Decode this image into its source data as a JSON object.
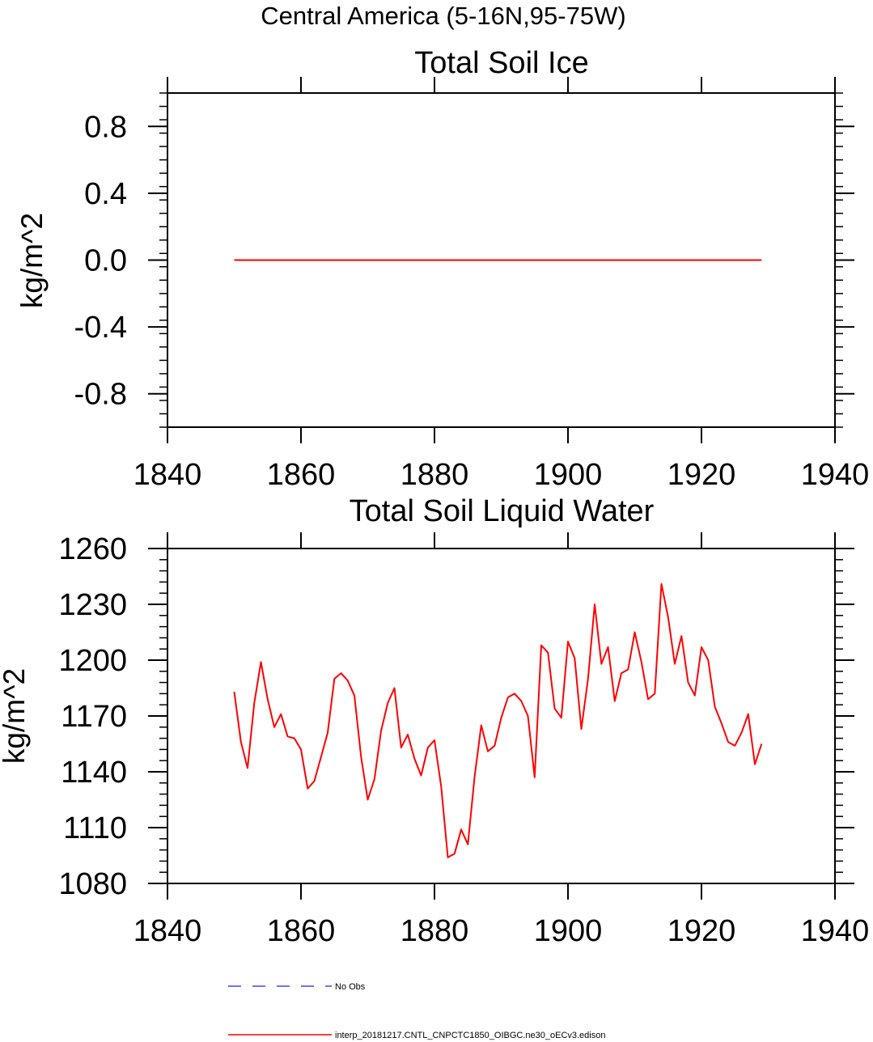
{
  "figure": {
    "suptitle": "Central America (5-16N,95-75W)",
    "legend": {
      "entries": [
        {
          "label": "No Obs",
          "color": "#4444ff",
          "style": "dashed"
        },
        {
          "label": "interp_20181217.CNTL_CNPCTC1850_OIBGC.ne30_oECv3.edison",
          "color": "#ff0000",
          "style": "solid"
        }
      ]
    }
  },
  "chart_data": [
    {
      "type": "line",
      "title": "Total Soil Ice",
      "xlabel": "",
      "ylabel": "kg/m^2",
      "xlim": [
        1840,
        1940
      ],
      "ylim": [
        -1.0,
        1.0
      ],
      "xticks": [
        1840,
        1860,
        1880,
        1900,
        1920,
        1940
      ],
      "xtick_labels": [
        "1840",
        "1860",
        "1880",
        "1900",
        "1920",
        "1940"
      ],
      "yticks": [
        -0.8,
        -0.4,
        0.0,
        0.4,
        0.8
      ],
      "ytick_labels": [
        "-0.8",
        "-0.4",
        "0.0",
        "0.4",
        "0.8"
      ],
      "series": [
        {
          "name": "interp_20181217.CNTL_CNPCTC1850_OIBGC.ne30_oECv3.edison",
          "color": "#ff0000",
          "x": [
            1850,
            1929
          ],
          "y": [
            0.0,
            0.0
          ]
        }
      ]
    },
    {
      "type": "line",
      "title": "Total Soil Liquid Water",
      "xlabel": "",
      "ylabel": "kg/m^2",
      "xlim": [
        1840,
        1940
      ],
      "ylim": [
        1080,
        1260
      ],
      "xticks": [
        1840,
        1860,
        1880,
        1900,
        1920,
        1940
      ],
      "xtick_labels": [
        "1840",
        "1860",
        "1880",
        "1900",
        "1920",
        "1940"
      ],
      "yticks": [
        1080,
        1110,
        1140,
        1170,
        1200,
        1230,
        1260
      ],
      "ytick_labels": [
        "1080",
        "1110",
        "1140",
        "1170",
        "1200",
        "1230",
        "1260"
      ],
      "series": [
        {
          "name": "interp_20181217.CNTL_CNPCTC1850_OIBGC.ne30_oECv3.edison",
          "color": "#ff0000",
          "x": [
            1850,
            1851,
            1852,
            1853,
            1854,
            1855,
            1856,
            1857,
            1858,
            1859,
            1860,
            1861,
            1862,
            1863,
            1864,
            1865,
            1866,
            1867,
            1868,
            1869,
            1870,
            1871,
            1872,
            1873,
            1874,
            1875,
            1876,
            1877,
            1878,
            1879,
            1880,
            1881,
            1882,
            1883,
            1884,
            1885,
            1886,
            1887,
            1888,
            1889,
            1890,
            1891,
            1892,
            1893,
            1894,
            1895,
            1896,
            1897,
            1898,
            1899,
            1900,
            1901,
            1902,
            1903,
            1904,
            1905,
            1906,
            1907,
            1908,
            1909,
            1910,
            1911,
            1912,
            1913,
            1914,
            1915,
            1916,
            1917,
            1918,
            1919,
            1920,
            1921,
            1922,
            1923,
            1924,
            1925,
            1926,
            1927,
            1928,
            1929
          ],
          "y": [
            1183,
            1156,
            1142,
            1177,
            1199,
            1179,
            1164,
            1171,
            1159,
            1158,
            1152,
            1131,
            1135,
            1148,
            1161,
            1190,
            1193,
            1189,
            1181,
            1148,
            1125,
            1136,
            1162,
            1177,
            1185,
            1153,
            1160,
            1147,
            1138,
            1153,
            1157,
            1132,
            1094,
            1096,
            1109,
            1101,
            1137,
            1165,
            1151,
            1154,
            1169,
            1180,
            1182,
            1178,
            1170,
            1137,
            1208,
            1204,
            1174,
            1169,
            1210,
            1201,
            1163,
            1190,
            1230,
            1198,
            1207,
            1178,
            1193,
            1195,
            1215,
            1199,
            1179,
            1182,
            1241,
            1223,
            1198,
            1213,
            1188,
            1181,
            1207,
            1200,
            1175,
            1166,
            1156,
            1154,
            1161,
            1171,
            1144,
            1155
          ]
        }
      ]
    }
  ]
}
